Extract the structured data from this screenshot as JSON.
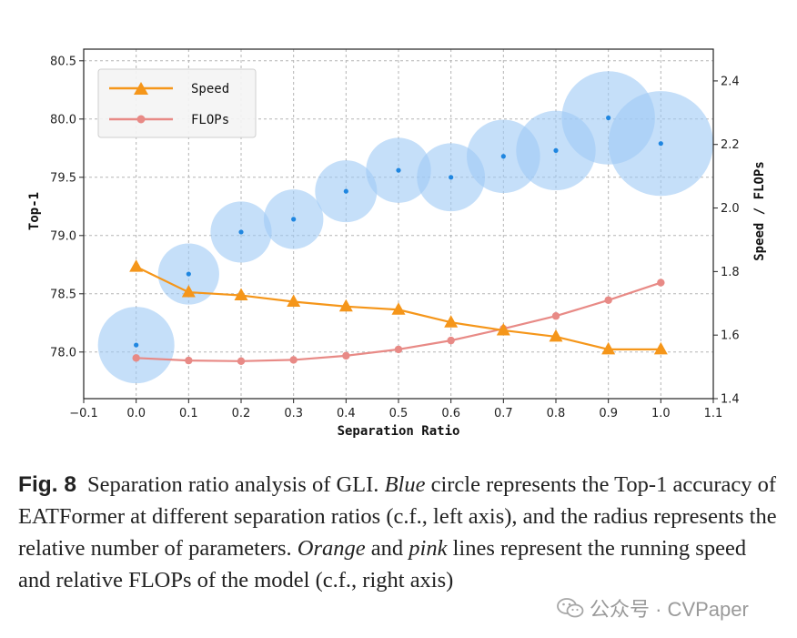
{
  "chart_data": {
    "type": "scatter",
    "xlabel": "Separation Ratio",
    "ylabel": "Top-1",
    "y2label": "Speed / FLOPs",
    "xlim": [
      -0.1,
      1.1
    ],
    "ylim": [
      77.6,
      80.6
    ],
    "y2lim": [
      1.4,
      2.5
    ],
    "x_ticks": [
      "−0.1",
      "0.0",
      "0.1",
      "0.2",
      "0.3",
      "0.4",
      "0.5",
      "0.6",
      "0.7",
      "0.8",
      "0.9",
      "1.0",
      "1.1"
    ],
    "y_ticks": [
      "78.0",
      "78.5",
      "79.0",
      "79.5",
      "80.0",
      "80.5"
    ],
    "y2_ticks": [
      "1.4",
      "1.6",
      "1.8",
      "2.0",
      "2.2",
      "2.4"
    ],
    "grid": true,
    "legend_position": "top-left",
    "top1": {
      "color": "#9ec9f5",
      "x": [
        0.0,
        0.1,
        0.2,
        0.3,
        0.4,
        0.5,
        0.6,
        0.7,
        0.8,
        0.9,
        1.0
      ],
      "values": [
        78.06,
        78.67,
        79.03,
        79.14,
        79.38,
        79.56,
        79.5,
        79.68,
        79.73,
        80.01,
        79.79
      ],
      "relative_params": [
        1.0,
        0.8,
        0.8,
        0.78,
        0.81,
        0.85,
        0.89,
        0.96,
        1.04,
        1.22,
        1.37
      ]
    },
    "series": [
      {
        "name": "Speed",
        "axis": "right",
        "color": "#f5961a",
        "marker": "triangle",
        "x": [
          0.0,
          0.1,
          0.2,
          0.3,
          0.4,
          0.5,
          0.6,
          0.7,
          0.8,
          0.9,
          1.0
        ],
        "values": [
          1.815,
          1.735,
          1.725,
          1.705,
          1.69,
          1.68,
          1.64,
          1.615,
          1.595,
          1.555,
          1.555
        ]
      },
      {
        "name": "FLOPs",
        "axis": "right",
        "color": "#e88a86",
        "marker": "circle",
        "x": [
          0.0,
          0.1,
          0.2,
          0.3,
          0.4,
          0.5,
          0.6,
          0.7,
          0.8,
          0.9,
          1.0
        ],
        "values": [
          1.528,
          1.52,
          1.518,
          1.522,
          1.535,
          1.555,
          1.583,
          1.62,
          1.66,
          1.71,
          1.765
        ]
      }
    ]
  },
  "caption": {
    "label": "Fig. 8",
    "text_1": "Separation ratio analysis of GLI. ",
    "blue": "Blue",
    "text_2": " circle represents the Top-1 accuracy of EATFormer at different separation ratios (c.f., left axis), and the radius represents the relative number of parameters. ",
    "orange": "Orange",
    "text_3": " and ",
    "pink": "pink",
    "text_4": " lines represent the running speed and relative FLOPs of the model (c.f., right axis)"
  },
  "watermark": {
    "text": "公众号 · CVPaper",
    "icon": "wechat-icon"
  }
}
